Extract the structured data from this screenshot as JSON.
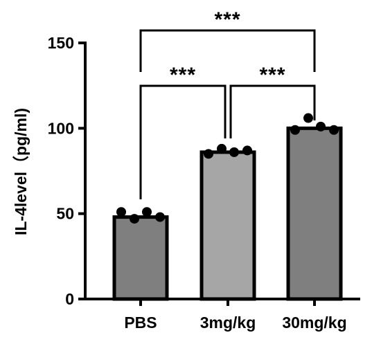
{
  "chart_data": {
    "type": "bar",
    "title": "",
    "xlabel": "",
    "ylabel": "IL-4level（pg/ml)",
    "ylim": [
      0,
      150
    ],
    "yticks": [
      0,
      50,
      100,
      150
    ],
    "grid": false,
    "categories": [
      "PBS",
      "3mg/kg",
      "30mg/kg"
    ],
    "values": [
      48,
      86,
      100
    ],
    "bar_colors": [
      "#7f7f7f",
      "#a6a6a6",
      "#7f7f7f"
    ],
    "points": [
      [
        51,
        47,
        51,
        48
      ],
      [
        85,
        88,
        86,
        87
      ],
      [
        99,
        106,
        101,
        99
      ]
    ],
    "significance": [
      {
        "from": 0,
        "to": 1,
        "label": "***"
      },
      {
        "from": 1,
        "to": 2,
        "label": "***"
      },
      {
        "from": 0,
        "to": 2,
        "label": "***"
      }
    ]
  }
}
